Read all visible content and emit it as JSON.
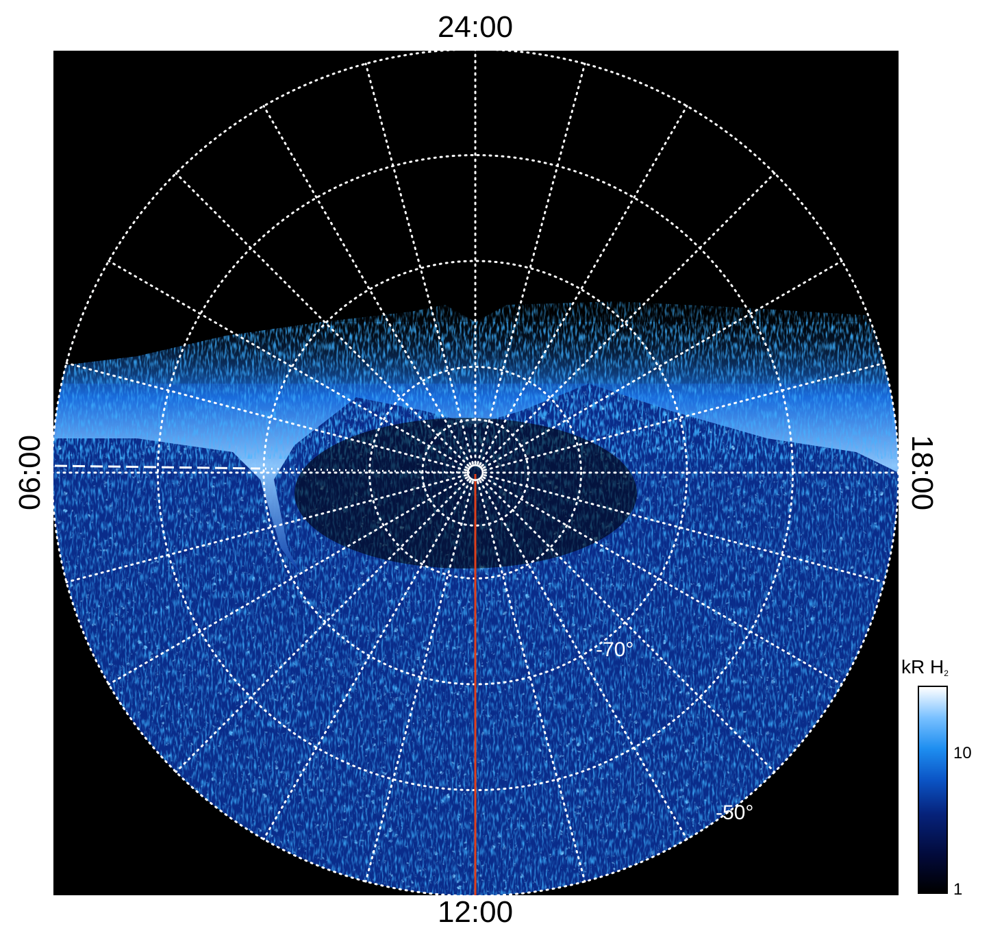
{
  "local_time_labels": {
    "top": "24:00",
    "bottom": "12:00",
    "left": "06:00",
    "right": "18:00"
  },
  "latitude_labels": [
    "-70°",
    "-50°"
  ],
  "colorbar": {
    "unit": "kR H",
    "species_subscript": "2",
    "ticks": [
      "10",
      "1"
    ],
    "colors": [
      "#000000",
      "#06227a",
      "#1e8ef0",
      "#ffffff"
    ]
  },
  "colors": {
    "background": "#000000",
    "grid": "#ffffff",
    "meridian_line": "#e0401a"
  }
}
